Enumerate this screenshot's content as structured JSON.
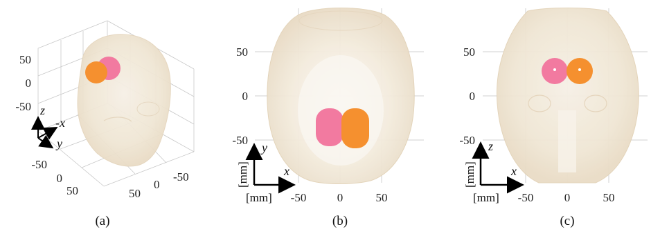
{
  "panels": [
    {
      "caption": "(a)",
      "z_ticks": [
        "50",
        "0",
        "-50"
      ],
      "left_ticks": [
        "-50",
        "0",
        "50"
      ],
      "right_ticks": [
        "50",
        "0",
        "-50"
      ],
      "triad": {
        "z": "z",
        "x": "-x",
        "y": "y"
      }
    },
    {
      "caption": "(b)",
      "y_ticks": [
        "50",
        "0",
        "-50"
      ],
      "x_ticks": [
        "-50",
        "0",
        "50"
      ],
      "unit_vertical": "[mm]",
      "unit_horizontal": "[mm]",
      "axis_v": "y",
      "axis_h": "x"
    },
    {
      "caption": "(c)",
      "y_ticks": [
        "50",
        "0",
        "-50"
      ],
      "x_ticks": [
        "-50",
        "0",
        "50"
      ],
      "unit_vertical": "[mm]",
      "unit_horizontal": "[mm]",
      "axis_v": "z",
      "axis_h": "x"
    }
  ],
  "colors": {
    "head": "#f1e7d6",
    "head_edge": "#e6d8c0",
    "pink": "#f27aa0",
    "orange": "#f5902f",
    "arrow": "#000000"
  }
}
